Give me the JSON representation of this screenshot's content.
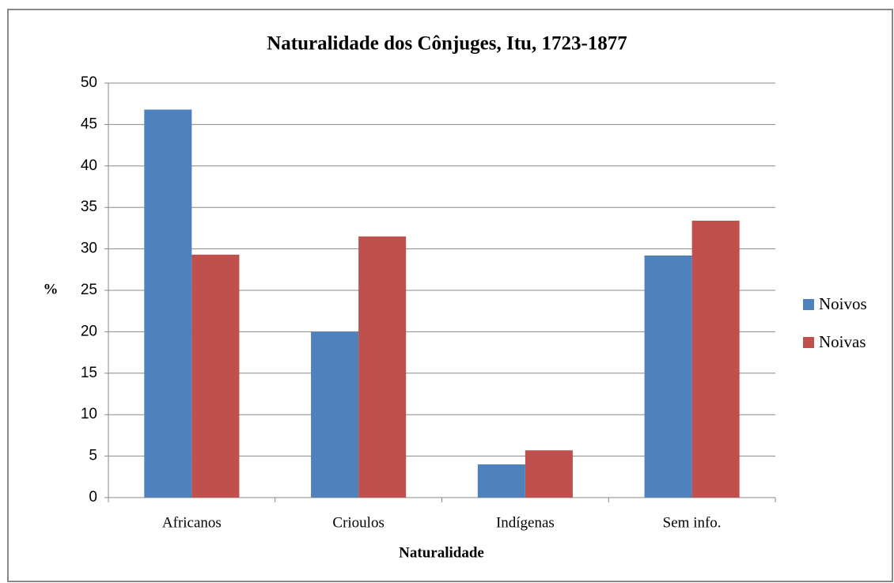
{
  "chart_data": {
    "type": "bar",
    "title": "Naturalidade dos Cônjuges, Itu, 1723-1877",
    "x_label": "Naturalidade",
    "y_label": "%",
    "categories": [
      "Africanos",
      "Crioulos",
      "Indígenas",
      "Sem info."
    ],
    "series": [
      {
        "name": "Noivos",
        "color": "#4f81bd",
        "values": [
          46.8,
          20.0,
          4.0,
          29.2
        ]
      },
      {
        "name": "Noivas",
        "color": "#c0504d",
        "values": [
          29.3,
          31.5,
          5.7,
          33.4
        ]
      }
    ],
    "ylim": [
      0,
      50
    ],
    "yticks": [
      0,
      5,
      10,
      15,
      20,
      25,
      30,
      35,
      40,
      45,
      50
    ],
    "grid": true,
    "legend": "right"
  }
}
